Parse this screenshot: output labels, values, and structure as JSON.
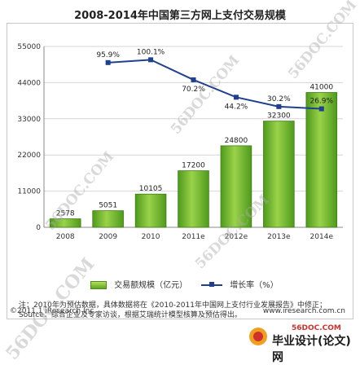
{
  "title": "2008-2014年中国第三方网上支付交易规模",
  "chart_data": {
    "type": "bar",
    "categories": [
      "2008",
      "2009",
      "2010",
      "2011e",
      "2012e",
      "2013e",
      "2014e"
    ],
    "series": [
      {
        "name": "交易额规模（亿元）",
        "type": "bar",
        "values": [
          2578,
          5051,
          10105,
          17200,
          24800,
          32300,
          41000
        ]
      },
      {
        "name": "增长率（%）",
        "type": "line",
        "values": [
          null,
          95.9,
          100.1,
          70.2,
          44.2,
          30.2,
          26.9
        ]
      }
    ],
    "value_labels": [
      "2578",
      "5051",
      "10105",
      "17200",
      "24800",
      "32300",
      "41000"
    ],
    "rate_labels": [
      "",
      "95.9%",
      "100.1%",
      "70.2%",
      "44.2%",
      "30.2%",
      "26.9%"
    ],
    "y_ticks": [
      "0",
      "11000",
      "22000",
      "33000",
      "44000",
      "55000"
    ],
    "ylim": [
      0,
      55000
    ],
    "rate_ylim": [
      -150,
      120
    ],
    "grid": true,
    "legend_position": "bottom",
    "bar_color": "#6cb52e",
    "line_color": "#1f3f8f"
  },
  "legend": {
    "bar_label": "交易额规模（亿元）",
    "line_label": "增长率（%）"
  },
  "notes": {
    "line1": "注：2010年为预估数据，具体数据将在《2010-2011年中国网上支付行业发展报告》中修正；",
    "line2": "Source：综合企业及专家访谈，根据艾瑞统计模型核算及预估得出。"
  },
  "copyright": "©2011.1 iResearch Inc.",
  "website": "www.iresearch.com.cn",
  "watermarks": [
    "56DOC.COM",
    "56DOC.COM",
    "56DOC.COM",
    "56DOC.COM",
    "56DOC.COM"
  ],
  "footer_logo": {
    "top": "56DOC.COM",
    "text": "毕业设计(论文)网"
  }
}
